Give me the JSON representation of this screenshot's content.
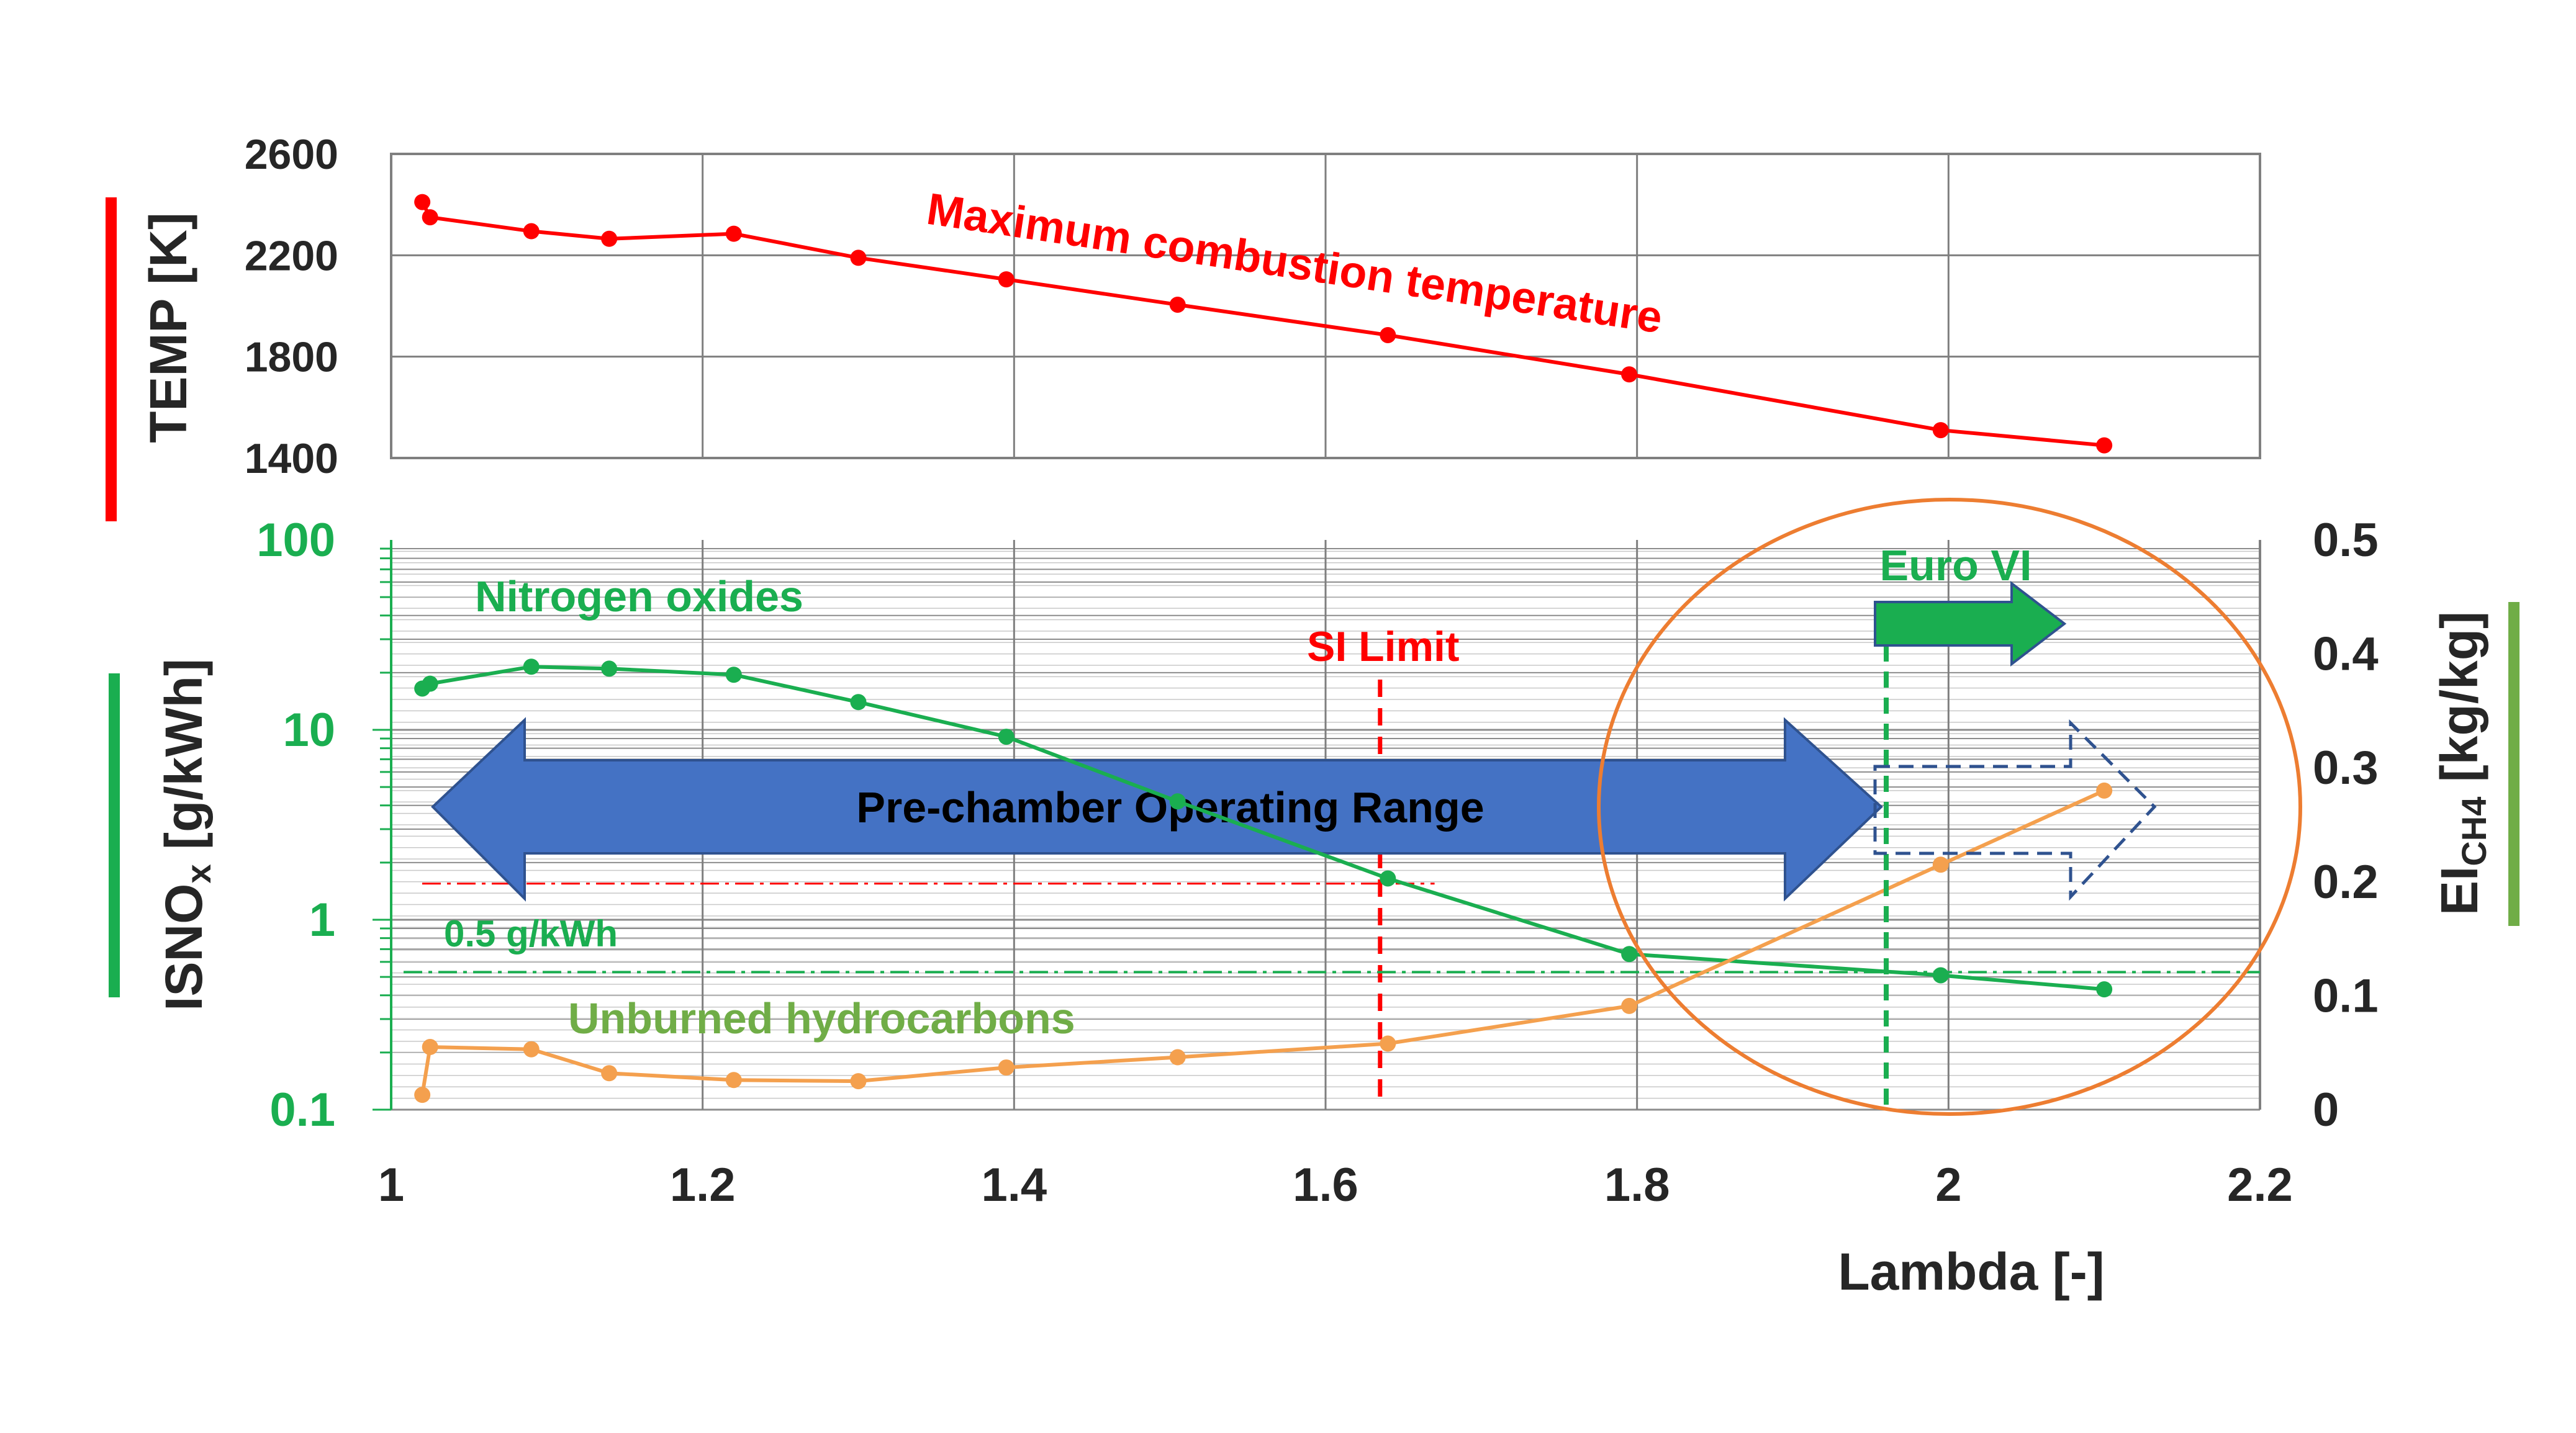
{
  "chart_data": [
    {
      "type": "line",
      "title": "",
      "xlabel": "",
      "ylabel": "TEMP [K]",
      "xlim": [
        1.0,
        2.2
      ],
      "ylim": [
        1400,
        2600
      ],
      "yticks": [
        "1400",
        "1800",
        "2200",
        "2600"
      ],
      "grid": true,
      "series": [
        {
          "name": "Maximum combustion temperature",
          "color": "#ff0000",
          "x": [
            1.02,
            1.025,
            1.09,
            1.14,
            1.22,
            1.3,
            1.395,
            1.505,
            1.64,
            1.795,
            1.995,
            2.1
          ],
          "values": [
            2410,
            2350,
            2295,
            2265,
            2285,
            2190,
            2105,
            2005,
            1885,
            1730,
            1510,
            1450
          ]
        }
      ]
    },
    {
      "type": "line",
      "title": "",
      "xlabel": "Lambda [-]",
      "xlim": [
        1.0,
        2.2
      ],
      "xticks": [
        "1",
        "1.2",
        "1.4",
        "1.6",
        "1.8",
        "2",
        "2.2"
      ],
      "ylabel": "ISNOx [g/kWh]",
      "ylabel_main": "ISNO",
      "ylabel_sub": "x",
      "ylabel_unit": " [g/kWh]",
      "ylim": [
        0.1,
        100
      ],
      "y_scale": "log",
      "yticks": [
        "0.1",
        "1",
        "10",
        "100"
      ],
      "y2label": "EICH4 [kg/kg]",
      "y2label_main": "EI",
      "y2label_sub": "CH4",
      "y2label_unit": " [kg/kg]",
      "y2lim": [
        0,
        0.5
      ],
      "y2ticks": [
        "0",
        "0.1",
        "0.2",
        "0.3",
        "0.4",
        "0.5"
      ],
      "grid": true,
      "series": [
        {
          "name": "Nitrogen oxides",
          "axis": "left",
          "color": "#1aae50",
          "x": [
            1.02,
            1.025,
            1.09,
            1.14,
            1.22,
            1.3,
            1.395,
            1.505,
            1.64,
            1.795,
            1.995,
            2.1
          ],
          "values": [
            16.5,
            17.5,
            21.5,
            21.0,
            19.5,
            14.0,
            9.2,
            4.2,
            1.65,
            0.66,
            0.51,
            0.43
          ]
        },
        {
          "name": "Unburned hydrocarbons",
          "axis": "right",
          "color": "#f4a04e",
          "x": [
            1.02,
            1.025,
            1.09,
            1.14,
            1.22,
            1.3,
            1.395,
            1.505,
            1.64,
            1.795,
            1.995,
            2.1
          ],
          "values": [
            0.013,
            0.055,
            0.053,
            0.032,
            0.026,
            0.025,
            0.037,
            0.046,
            0.058,
            0.091,
            0.215,
            0.28
          ]
        }
      ],
      "reference_lines": [
        {
          "label": "SI Limit",
          "x": 1.635,
          "color": "#ff0000"
        },
        {
          "label": "0.5 g/kWh",
          "y": 0.53,
          "color": "#1aae50"
        },
        {
          "label": "",
          "y": 1.55,
          "color": "#ff0000"
        }
      ],
      "annotations": {
        "operating_range": "Pre-chamber Operating Range",
        "euro": "Euro VI",
        "euro_lambda": 1.96
      }
    }
  ],
  "colors": {
    "temp": "#ff0000",
    "nox": "#1aae50",
    "hc": "#f4a04e",
    "range_arrow": "#4472c4",
    "range_arrow_edge": "#2f528f",
    "hc_label": "#70ad47",
    "circle": "#ed7d31",
    "ei_bar": "#70ad47",
    "grid": "#7f7f7f",
    "axis_text": "#262626"
  }
}
